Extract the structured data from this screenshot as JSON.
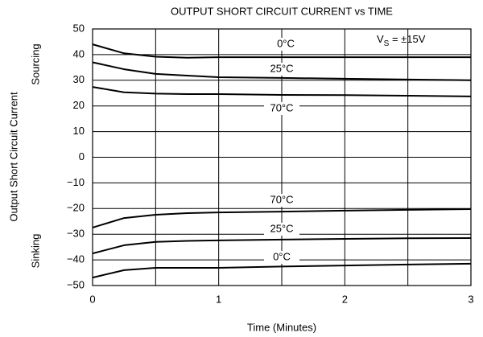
{
  "chart_data": {
    "type": "line",
    "title": "OUTPUT SHORT CIRCUIT CURRENT vs TIME",
    "x_label": "Time (Minutes)",
    "y_label": "Output Short Circuit Current",
    "annotations": [
      "Sourcing",
      "Sinking"
    ],
    "supply": {
      "main": "V",
      "sub": "S",
      "rest": " = ±15V"
    },
    "x": [
      0,
      0.25,
      0.5,
      0.75,
      1,
      1.5,
      2,
      2.5,
      3
    ],
    "xlim": [
      0,
      3
    ],
    "xticks": [
      0,
      1,
      2,
      3
    ],
    "ylim": [
      -50,
      50
    ],
    "yticks": [
      {
        "value": -50,
        "label": "−50"
      },
      {
        "value": -40,
        "label": "−40"
      },
      {
        "value": -30,
        "label": "−30"
      },
      {
        "value": -20,
        "label": "−20"
      },
      {
        "value": -10,
        "label": "−10"
      },
      0,
      10,
      20,
      30,
      40,
      50
    ],
    "grid": true,
    "series": [
      {
        "name": "0°C",
        "color": "#000000",
        "values": [
          44,
          40.5,
          39.2,
          38.8,
          39,
          39,
          39,
          39,
          39
        ]
      },
      {
        "name": "25°C",
        "color": "#000000",
        "values": [
          37,
          34.3,
          32.5,
          31.8,
          31.2,
          30.9,
          30.6,
          30.3,
          30
        ]
      },
      {
        "name": "70°C",
        "color": "#000000",
        "values": [
          27.4,
          25.3,
          24.8,
          24.6,
          24.6,
          24.3,
          24.2,
          24,
          23.7
        ]
      },
      {
        "name": "70°C",
        "color": "#000000",
        "values": [
          -27.4,
          -23.7,
          -22.4,
          -21.8,
          -21.5,
          -21.2,
          -20.8,
          -20.5,
          -20.2
        ]
      },
      {
        "name": "25°C",
        "color": "#000000",
        "values": [
          -37.5,
          -34.3,
          -33,
          -32.6,
          -32.4,
          -32.1,
          -31.8,
          -31.6,
          -31.5
        ]
      },
      {
        "name": "0°C",
        "color": "#000000",
        "values": [
          -46.9,
          -44,
          -43.1,
          -43.1,
          -43.1,
          -42.6,
          -42.2,
          -41.8,
          -41.5
        ]
      }
    ]
  }
}
